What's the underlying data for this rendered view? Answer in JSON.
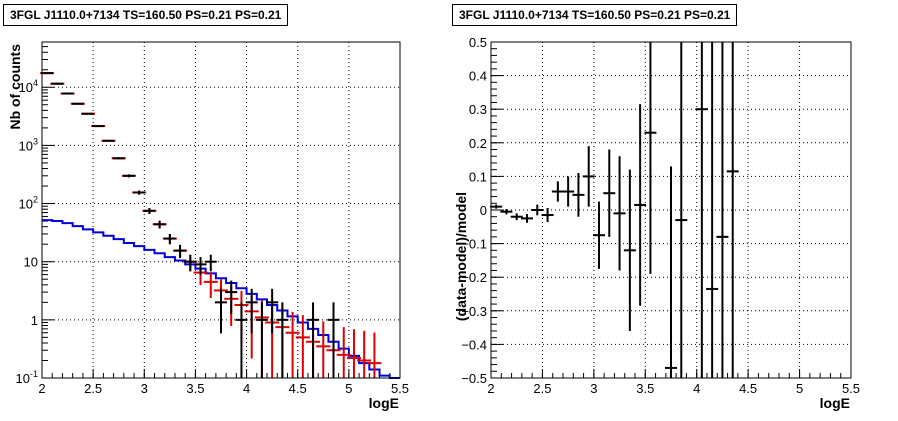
{
  "chart_data": [
    {
      "type": "histogram",
      "title": "3FGL J1110.0+7134 TS=160.50 PS=0.21 PS=0.21",
      "xlabel": "logE",
      "ylabel": "Nb of counts",
      "xlim": [
        2,
        5.5
      ],
      "ylim": [
        0.1,
        60000
      ],
      "yscale": "log",
      "grid": true,
      "x_ticks": [
        "2",
        "2.5",
        "3",
        "3.5",
        "4",
        "4.5",
        "5",
        "5.5"
      ],
      "y_ticks": [
        "10^{-1}",
        "1",
        "10",
        "10^{2}",
        "10^{3}",
        "10^{4}"
      ],
      "series": [
        {
          "color": "#000000",
          "style": "points-with-errorbars",
          "x": [
            2.05,
            2.15,
            2.25,
            2.35,
            2.45,
            2.55,
            2.65,
            2.75,
            2.85,
            2.95,
            3.05,
            3.15,
            3.25,
            3.35,
            3.45,
            3.55,
            3.65,
            3.75,
            3.85,
            3.95,
            4.05,
            4.15,
            4.25,
            4.35,
            4.65,
            4.85
          ],
          "y": [
            17500,
            11500,
            7800,
            5200,
            3500,
            2150,
            1200,
            600,
            300,
            155,
            75,
            44,
            25,
            15.5,
            10,
            9,
            10,
            2,
            3,
            1,
            2,
            1,
            2,
            1,
            1,
            1
          ]
        },
        {
          "color": "#dd0000",
          "style": "points-with-errorbars",
          "x": [
            2.05,
            2.15,
            2.25,
            2.35,
            2.45,
            2.55,
            2.65,
            2.75,
            2.85,
            2.95,
            3.05,
            3.15,
            3.25,
            3.35,
            3.45,
            3.55,
            3.65,
            3.75,
            3.85,
            3.95,
            4.05,
            4.15,
            4.25,
            4.35,
            4.45,
            4.55,
            4.65,
            4.75,
            4.85,
            4.95,
            5.05,
            5.15,
            5.25
          ],
          "y": [
            17500,
            11500,
            7800,
            5200,
            3500,
            2150,
            1200,
            600,
            300,
            155,
            75,
            44,
            25,
            15.5,
            10,
            6.5,
            4.5,
            3.2,
            2.3,
            1.8,
            1.4,
            1.1,
            0.9,
            0.75,
            0.6,
            0.5,
            0.42,
            0.35,
            0.3,
            0.25,
            0.22,
            0.2,
            0.18
          ]
        },
        {
          "color": "#0000dd",
          "style": "step",
          "x_edges": [
            2.0,
            2.1,
            2.2,
            2.3,
            2.4,
            2.5,
            2.6,
            2.7,
            2.8,
            2.9,
            3.0,
            3.1,
            3.2,
            3.3,
            3.4,
            3.5,
            3.6,
            3.7,
            3.8,
            3.9,
            4.0,
            4.1,
            4.2,
            4.3,
            4.4,
            4.5,
            4.6,
            4.7,
            4.8,
            4.9,
            5.0,
            5.1,
            5.2,
            5.3,
            5.4,
            5.5
          ],
          "y": [
            52,
            50,
            46,
            41,
            36,
            32,
            28,
            24.5,
            21,
            18.5,
            16,
            14,
            12,
            10.5,
            9,
            7.6,
            6.3,
            5.2,
            4.3,
            3.5,
            2.8,
            2.25,
            1.8,
            1.45,
            1.15,
            0.9,
            0.7,
            0.55,
            0.42,
            0.32,
            0.24,
            0.18,
            0.14,
            0.11,
            0.1
          ]
        }
      ]
    },
    {
      "type": "scatter",
      "title": "3FGL J1110.0+7134 TS=160.50 PS=0.21 PS=0.21",
      "xlabel": "logE",
      "ylabel": "(data-model)/model",
      "xlim": [
        2,
        5.5
      ],
      "ylim": [
        -0.5,
        0.5
      ],
      "grid": true,
      "x_ticks": [
        "2",
        "2.5",
        "3",
        "3.5",
        "4",
        "4.5",
        "5",
        "5.5"
      ],
      "y_ticks": [
        "−0.5",
        "−0.4",
        "−0.3",
        "−0.2",
        "−0.1",
        "0",
        "0.1",
        "0.2",
        "0.3",
        "0.4",
        "0.5"
      ],
      "series": [
        {
          "color": "#000000",
          "style": "points-with-errorbars",
          "x": [
            2.05,
            2.15,
            2.25,
            2.35,
            2.45,
            2.55,
            2.65,
            2.75,
            2.85,
            2.95,
            3.05,
            3.15,
            3.25,
            3.35,
            3.45,
            3.55,
            3.75,
            3.85,
            4.05,
            4.15,
            4.25,
            4.35
          ],
          "y": [
            0.01,
            -0.005,
            -0.02,
            -0.025,
            0.0,
            -0.015,
            0.055,
            0.055,
            0.045,
            0.1,
            -0.075,
            0.05,
            -0.01,
            -0.12,
            0.015,
            0.23,
            -0.47,
            -0.03,
            0.3,
            -0.235,
            -0.08,
            0.115
          ],
          "err": [
            0.006,
            0.008,
            0.01,
            0.013,
            0.016,
            0.021,
            0.03,
            0.045,
            0.065,
            0.09,
            0.1,
            0.13,
            0.17,
            0.24,
            0.3,
            0.42,
            0.6,
            0.8,
            0.9,
            0.9,
            0.9,
            0.9
          ]
        }
      ]
    }
  ]
}
